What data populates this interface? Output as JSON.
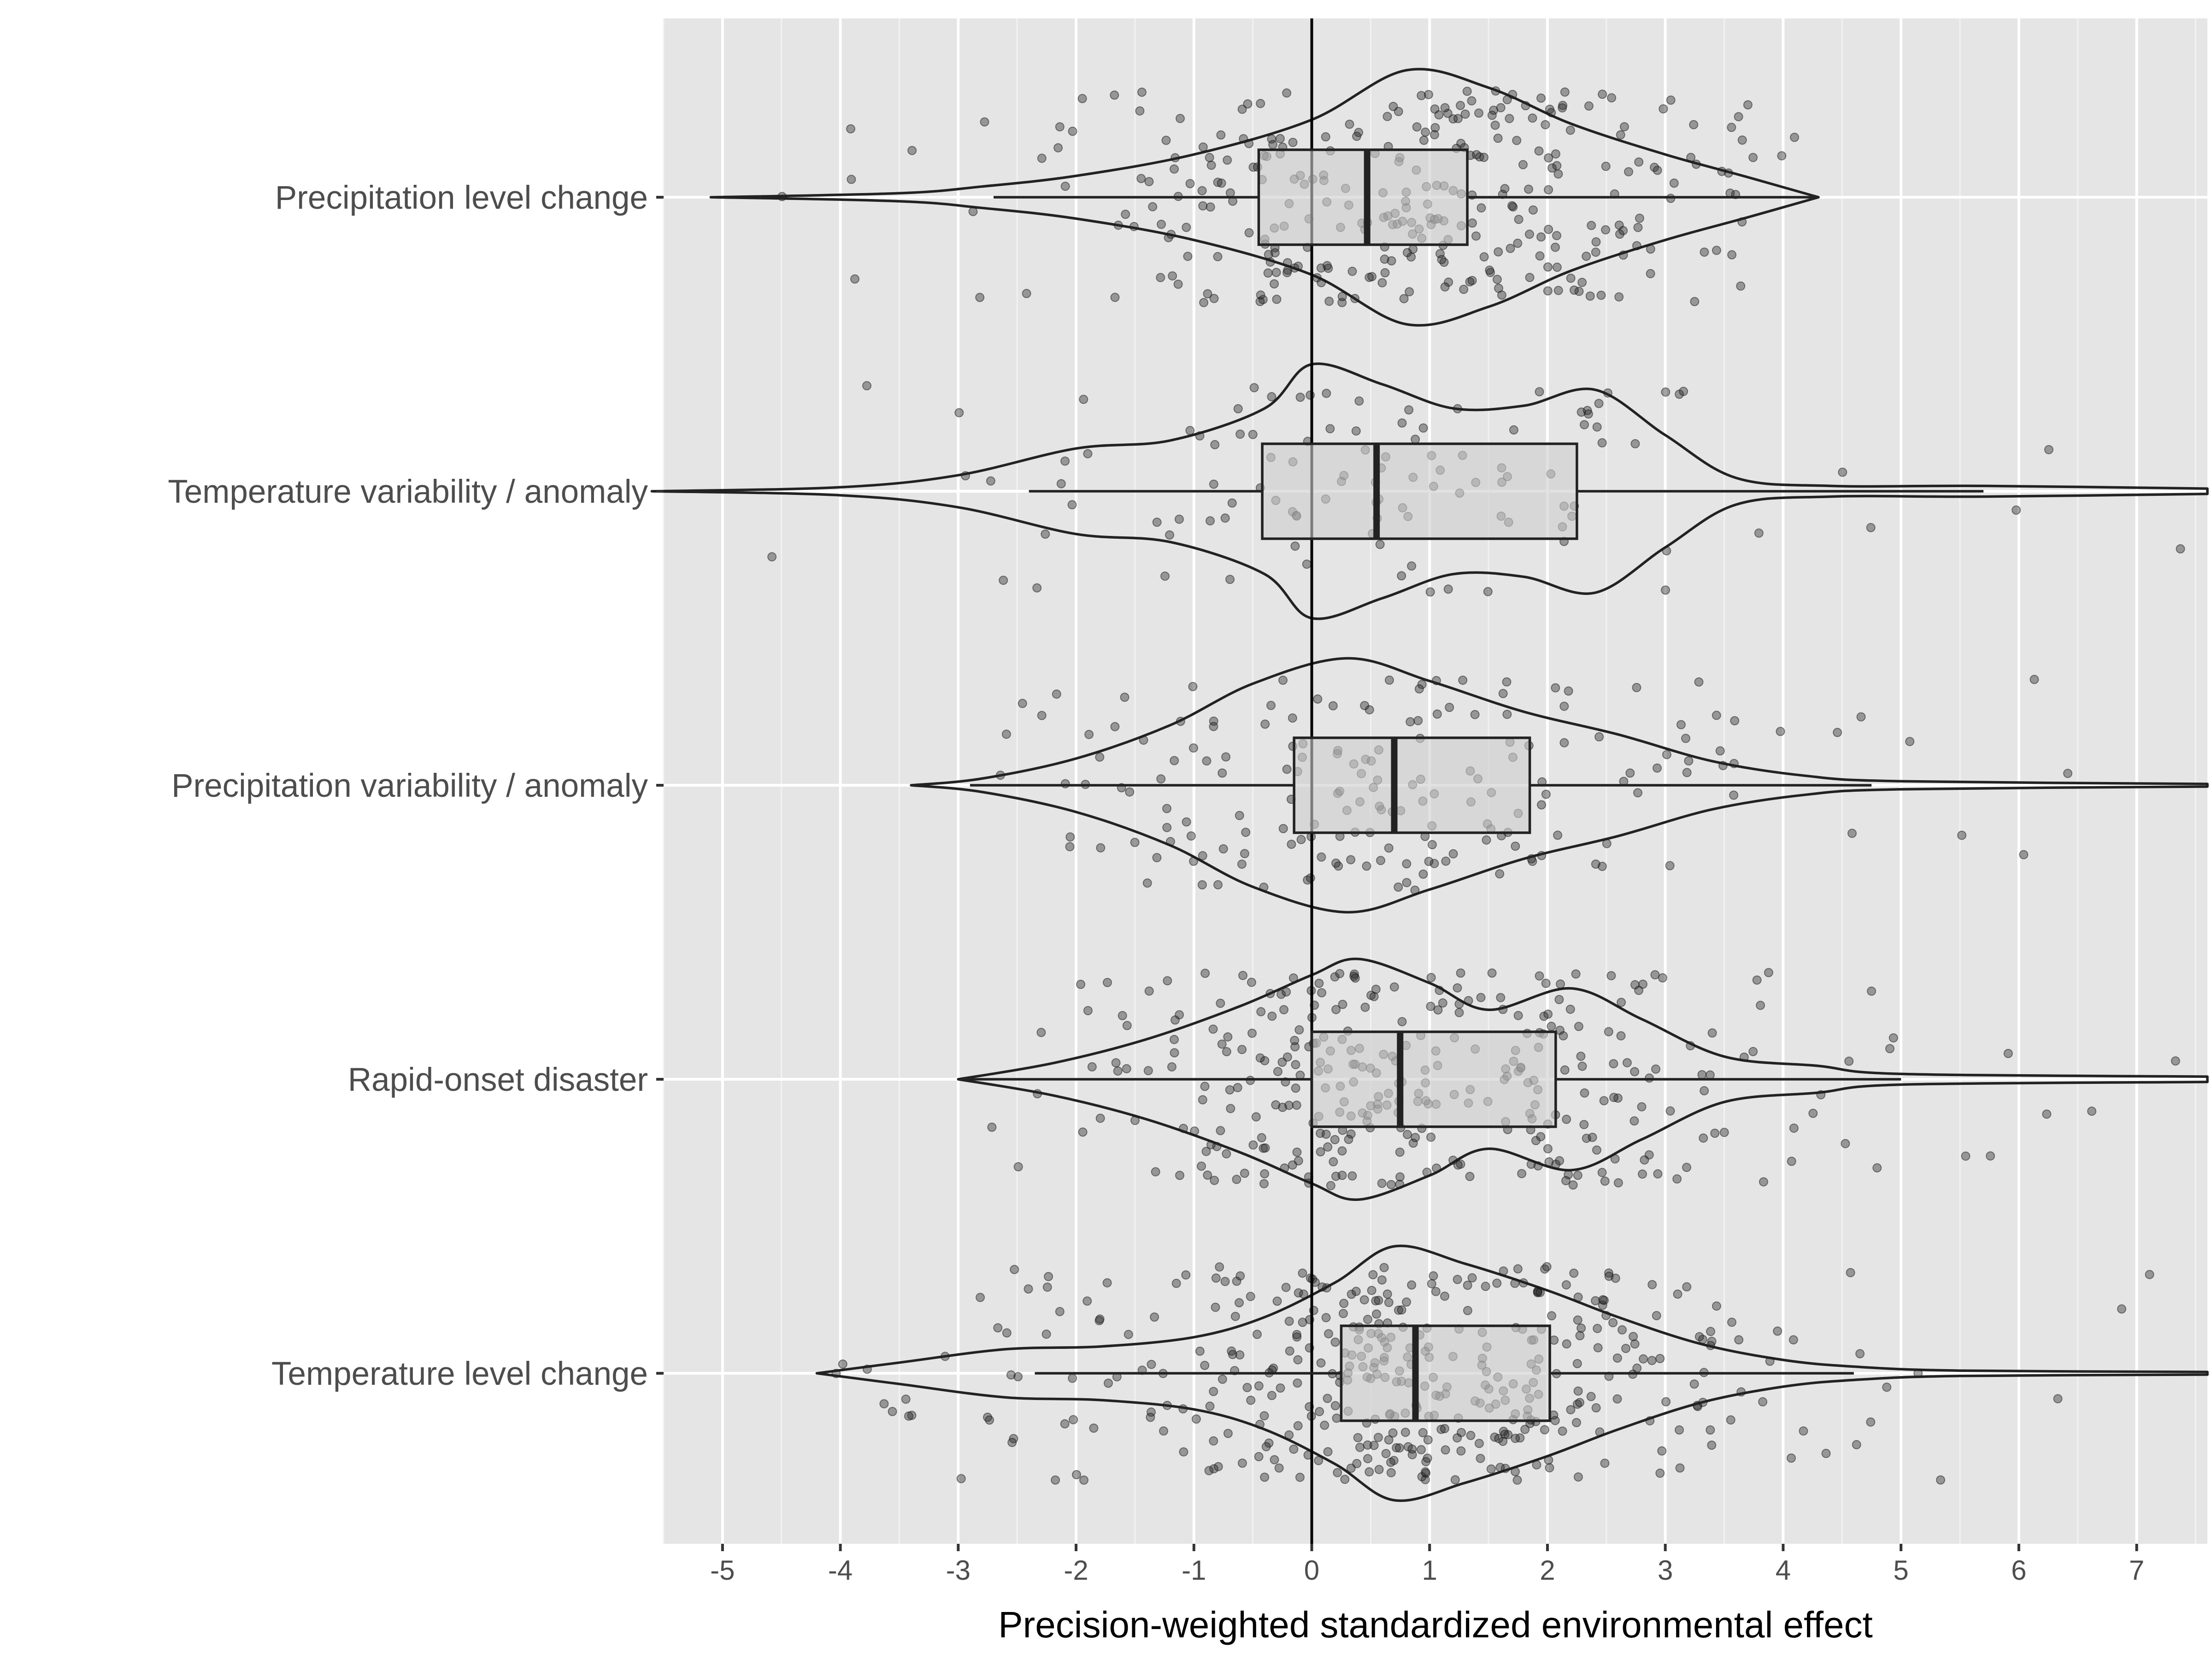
{
  "chart_data": {
    "type": "violin",
    "title": "",
    "xlabel": "Precision-weighted standardized environmental effect",
    "ylabel": "",
    "xlim": [
      -5.5,
      7.6
    ],
    "x_ticks": [
      -5,
      -4,
      -3,
      -2,
      -1,
      0,
      1,
      2,
      3,
      4,
      5,
      6,
      7
    ],
    "x_tick_labels": [
      "-5",
      "-4",
      "-3",
      "-2",
      "-1",
      "0",
      "1",
      "2",
      "3",
      "4",
      "5",
      "6",
      "7"
    ],
    "reference_line_x": 0,
    "grid": true,
    "legend": "none",
    "categories": [
      "Precipitation level change",
      "Temperature variability / anomaly",
      "Precipitation variability / anomaly",
      "Rapid-onset disaster",
      "Temperature level change"
    ],
    "series": [
      {
        "category": "Precipitation level change",
        "box": {
          "whisker_low": -2.7,
          "q1": -0.45,
          "median": 0.47,
          "q3": 1.32,
          "whisker_high": 4.3
        },
        "violin_range": [
          -5.1,
          4.3
        ],
        "density": [
          [
            -5.1,
            0.0
          ],
          [
            -3.5,
            0.03
          ],
          [
            -2.8,
            0.08
          ],
          [
            -2.0,
            0.16
          ],
          [
            -1.0,
            0.32
          ],
          [
            0.0,
            0.58
          ],
          [
            0.8,
            0.95
          ],
          [
            1.5,
            0.82
          ],
          [
            2.2,
            0.55
          ],
          [
            3.0,
            0.32
          ],
          [
            3.7,
            0.15
          ],
          [
            4.3,
            0.0
          ]
        ],
        "n_points": 320
      },
      {
        "category": "Temperature variability / anomaly",
        "box": {
          "whisker_low": -2.4,
          "q1": -0.42,
          "median": 0.55,
          "q3": 2.25,
          "whisker_high": 5.7
        },
        "violin_range": [
          -5.6,
          7.6
        ],
        "density": [
          [
            -5.6,
            0.0
          ],
          [
            -4.0,
            0.03
          ],
          [
            -3.0,
            0.12
          ],
          [
            -2.0,
            0.32
          ],
          [
            -1.2,
            0.38
          ],
          [
            -0.4,
            0.62
          ],
          [
            0.0,
            0.95
          ],
          [
            0.6,
            0.8
          ],
          [
            1.2,
            0.62
          ],
          [
            1.8,
            0.64
          ],
          [
            2.4,
            0.76
          ],
          [
            3.0,
            0.42
          ],
          [
            3.6,
            0.1
          ],
          [
            4.4,
            0.04
          ],
          [
            5.7,
            0.04
          ],
          [
            7.6,
            0.02
          ]
        ],
        "n_points": 110
      },
      {
        "category": "Precipitation variability / anomaly",
        "box": {
          "whisker_low": -2.9,
          "q1": -0.15,
          "median": 0.7,
          "q3": 1.85,
          "whisker_high": 4.75
        },
        "violin_range": [
          -3.4,
          7.6
        ],
        "density": [
          [
            -3.4,
            0.0
          ],
          [
            -2.8,
            0.05
          ],
          [
            -2.0,
            0.2
          ],
          [
            -1.2,
            0.45
          ],
          [
            -0.5,
            0.76
          ],
          [
            0.3,
            0.95
          ],
          [
            1.0,
            0.78
          ],
          [
            1.8,
            0.55
          ],
          [
            2.6,
            0.38
          ],
          [
            3.4,
            0.18
          ],
          [
            4.2,
            0.07
          ],
          [
            5.0,
            0.03
          ],
          [
            7.6,
            0.01
          ]
        ],
        "n_points": 180
      },
      {
        "category": "Rapid-onset disaster",
        "box": {
          "whisker_low": -3.0,
          "q1": 0.0,
          "median": 0.75,
          "q3": 2.07,
          "whisker_high": 5.0
        },
        "violin_range": [
          -3.0,
          7.6
        ],
        "density": [
          [
            -3.0,
            0.0
          ],
          [
            -2.2,
            0.12
          ],
          [
            -1.4,
            0.3
          ],
          [
            -0.6,
            0.55
          ],
          [
            0.0,
            0.78
          ],
          [
            0.4,
            0.9
          ],
          [
            1.0,
            0.72
          ],
          [
            1.5,
            0.52
          ],
          [
            2.2,
            0.68
          ],
          [
            2.8,
            0.45
          ],
          [
            3.5,
            0.17
          ],
          [
            4.3,
            0.1
          ],
          [
            5.0,
            0.04
          ],
          [
            7.6,
            0.02
          ]
        ],
        "n_points": 330
      },
      {
        "category": "Temperature level change",
        "box": {
          "whisker_low": -2.35,
          "q1": 0.25,
          "median": 0.88,
          "q3": 2.02,
          "whisker_high": 4.6
        },
        "violin_range": [
          -4.2,
          7.6
        ],
        "density": [
          [
            -4.2,
            0.0
          ],
          [
            -3.5,
            0.08
          ],
          [
            -2.6,
            0.18
          ],
          [
            -1.8,
            0.2
          ],
          [
            -1.0,
            0.27
          ],
          [
            -0.4,
            0.42
          ],
          [
            0.2,
            0.68
          ],
          [
            0.7,
            0.95
          ],
          [
            1.3,
            0.82
          ],
          [
            2.0,
            0.62
          ],
          [
            2.6,
            0.42
          ],
          [
            3.3,
            0.22
          ],
          [
            4.0,
            0.1
          ],
          [
            4.6,
            0.05
          ],
          [
            5.5,
            0.02
          ],
          [
            7.6,
            0.01
          ]
        ],
        "n_points": 420
      }
    ]
  }
}
